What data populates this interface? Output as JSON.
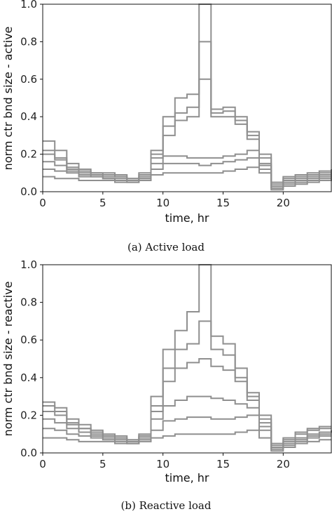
{
  "figure": {
    "captions": [
      "(a) Active load",
      "(b) Reactive load"
    ]
  },
  "chart_data": [
    {
      "type": "line",
      "xlabel": "time, hr",
      "ylabel": "norm ctr bnd size - active",
      "xlim": [
        0,
        24
      ],
      "ylim": [
        0.0,
        1.0
      ],
      "xticks": [
        "0",
        "5",
        "10",
        "15",
        "20"
      ],
      "yticks": [
        "0.0",
        "0.2",
        "0.4",
        "0.6",
        "0.8",
        "1.0"
      ],
      "grid": false,
      "series": [
        {
          "x": [
            0,
            1,
            2,
            3,
            4,
            5,
            6,
            7,
            8,
            9,
            10,
            11,
            12,
            13,
            14,
            15,
            16,
            17,
            18,
            19,
            20,
            21,
            22,
            23,
            24
          ],
          "values": [
            0.27,
            0.22,
            0.15,
            0.12,
            0.1,
            0.1,
            0.09,
            0.07,
            0.1,
            0.22,
            0.4,
            0.5,
            0.52,
            1.0,
            0.44,
            0.45,
            0.4,
            0.3,
            0.2,
            0.05,
            0.08,
            0.09,
            0.1,
            0.11,
            0.12
          ]
        },
        {
          "x": [
            0,
            1,
            2,
            3,
            4,
            5,
            6,
            7,
            8,
            9,
            10,
            11,
            12,
            13,
            14,
            15,
            16,
            17,
            18,
            19,
            20,
            21,
            22,
            23,
            24
          ],
          "values": [
            0.2,
            0.17,
            0.13,
            0.11,
            0.09,
            0.09,
            0.08,
            0.07,
            0.09,
            0.18,
            0.35,
            0.42,
            0.45,
            0.8,
            0.42,
            0.43,
            0.36,
            0.32,
            0.18,
            0.04,
            0.07,
            0.08,
            0.09,
            0.1,
            0.11
          ]
        },
        {
          "x": [
            0,
            1,
            2,
            3,
            4,
            5,
            6,
            7,
            8,
            9,
            10,
            11,
            12,
            13,
            14,
            15,
            16,
            17,
            18,
            19,
            20,
            21,
            22,
            23,
            24
          ],
          "values": [
            0.22,
            0.18,
            0.12,
            0.1,
            0.1,
            0.08,
            0.08,
            0.06,
            0.08,
            0.2,
            0.3,
            0.38,
            0.4,
            0.6,
            0.4,
            0.4,
            0.38,
            0.28,
            0.15,
            0.03,
            0.06,
            0.07,
            0.08,
            0.09,
            0.1
          ]
        },
        {
          "x": [
            0,
            1,
            2,
            3,
            4,
            5,
            6,
            7,
            8,
            9,
            10,
            11,
            12,
            13,
            14,
            15,
            16,
            17,
            18,
            19,
            20,
            21,
            22,
            23,
            24
          ],
          "values": [
            0.16,
            0.14,
            0.11,
            0.09,
            0.08,
            0.07,
            0.07,
            0.06,
            0.07,
            0.15,
            0.19,
            0.19,
            0.18,
            0.18,
            0.18,
            0.19,
            0.2,
            0.22,
            0.14,
            0.02,
            0.05,
            0.06,
            0.07,
            0.08,
            0.09
          ]
        },
        {
          "x": [
            0,
            1,
            2,
            3,
            4,
            5,
            6,
            7,
            8,
            9,
            10,
            11,
            12,
            13,
            14,
            15,
            16,
            17,
            18,
            19,
            20,
            21,
            22,
            23,
            24
          ],
          "values": [
            0.12,
            0.11,
            0.1,
            0.08,
            0.08,
            0.07,
            0.06,
            0.05,
            0.07,
            0.12,
            0.15,
            0.15,
            0.15,
            0.14,
            0.15,
            0.16,
            0.17,
            0.18,
            0.12,
            0.02,
            0.04,
            0.05,
            0.06,
            0.07,
            0.08
          ]
        },
        {
          "x": [
            0,
            1,
            2,
            3,
            4,
            5,
            6,
            7,
            8,
            9,
            10,
            11,
            12,
            13,
            14,
            15,
            16,
            17,
            18,
            19,
            20,
            21,
            22,
            23,
            24
          ],
          "values": [
            0.08,
            0.07,
            0.07,
            0.06,
            0.06,
            0.06,
            0.05,
            0.05,
            0.06,
            0.09,
            0.1,
            0.1,
            0.1,
            0.1,
            0.1,
            0.11,
            0.12,
            0.13,
            0.1,
            0.01,
            0.03,
            0.04,
            0.05,
            0.06,
            0.07
          ]
        }
      ]
    },
    {
      "type": "line",
      "xlabel": "time, hr",
      "ylabel": "norm ctr bnd size - reactive",
      "xlim": [
        0,
        24
      ],
      "ylim": [
        0.0,
        1.0
      ],
      "xticks": [
        "0",
        "5",
        "10",
        "15",
        "20"
      ],
      "yticks": [
        "0.0",
        "0.2",
        "0.4",
        "0.6",
        "0.8",
        "1.0"
      ],
      "grid": false,
      "series": [
        {
          "x": [
            0,
            1,
            2,
            3,
            4,
            5,
            6,
            7,
            8,
            9,
            10,
            11,
            12,
            13,
            14,
            15,
            16,
            17,
            18,
            19,
            20,
            21,
            22,
            23,
            24
          ],
          "values": [
            0.27,
            0.24,
            0.18,
            0.15,
            0.12,
            0.1,
            0.09,
            0.07,
            0.1,
            0.3,
            0.55,
            0.65,
            0.75,
            1.0,
            0.62,
            0.58,
            0.45,
            0.32,
            0.2,
            0.05,
            0.08,
            0.11,
            0.13,
            0.14,
            0.14
          ]
        },
        {
          "x": [
            0,
            1,
            2,
            3,
            4,
            5,
            6,
            7,
            8,
            9,
            10,
            11,
            12,
            13,
            14,
            15,
            16,
            17,
            18,
            19,
            20,
            21,
            22,
            23,
            24
          ],
          "values": [
            0.22,
            0.2,
            0.15,
            0.13,
            0.11,
            0.09,
            0.08,
            0.06,
            0.09,
            0.25,
            0.45,
            0.55,
            0.58,
            0.7,
            0.55,
            0.52,
            0.4,
            0.3,
            0.18,
            0.04,
            0.07,
            0.1,
            0.12,
            0.13,
            0.13
          ]
        },
        {
          "x": [
            0,
            1,
            2,
            3,
            4,
            5,
            6,
            7,
            8,
            9,
            10,
            11,
            12,
            13,
            14,
            15,
            16,
            17,
            18,
            19,
            20,
            21,
            22,
            23,
            24
          ],
          "values": [
            0.25,
            0.22,
            0.16,
            0.13,
            0.1,
            0.09,
            0.08,
            0.06,
            0.09,
            0.22,
            0.38,
            0.45,
            0.48,
            0.5,
            0.46,
            0.44,
            0.38,
            0.28,
            0.16,
            0.03,
            0.06,
            0.08,
            0.1,
            0.11,
            0.12
          ]
        },
        {
          "x": [
            0,
            1,
            2,
            3,
            4,
            5,
            6,
            7,
            8,
            9,
            10,
            11,
            12,
            13,
            14,
            15,
            16,
            17,
            18,
            19,
            20,
            21,
            22,
            23,
            24
          ],
          "values": [
            0.18,
            0.16,
            0.13,
            0.11,
            0.09,
            0.08,
            0.07,
            0.05,
            0.08,
            0.18,
            0.25,
            0.28,
            0.3,
            0.3,
            0.29,
            0.28,
            0.26,
            0.24,
            0.14,
            0.02,
            0.05,
            0.07,
            0.09,
            0.1,
            0.1
          ]
        },
        {
          "x": [
            0,
            1,
            2,
            3,
            4,
            5,
            6,
            7,
            8,
            9,
            10,
            11,
            12,
            13,
            14,
            15,
            16,
            17,
            18,
            19,
            20,
            21,
            22,
            23,
            24
          ],
          "values": [
            0.13,
            0.12,
            0.1,
            0.09,
            0.08,
            0.07,
            0.06,
            0.05,
            0.07,
            0.12,
            0.17,
            0.18,
            0.19,
            0.19,
            0.18,
            0.18,
            0.19,
            0.2,
            0.12,
            0.02,
            0.04,
            0.06,
            0.08,
            0.09,
            0.09
          ]
        },
        {
          "x": [
            0,
            1,
            2,
            3,
            4,
            5,
            6,
            7,
            8,
            9,
            10,
            11,
            12,
            13,
            14,
            15,
            16,
            17,
            18,
            19,
            20,
            21,
            22,
            23,
            24
          ],
          "values": [
            0.08,
            0.08,
            0.07,
            0.06,
            0.06,
            0.06,
            0.05,
            0.05,
            0.06,
            0.08,
            0.09,
            0.1,
            0.1,
            0.1,
            0.1,
            0.1,
            0.11,
            0.12,
            0.08,
            0.01,
            0.03,
            0.05,
            0.06,
            0.07,
            0.07
          ]
        }
      ]
    }
  ]
}
